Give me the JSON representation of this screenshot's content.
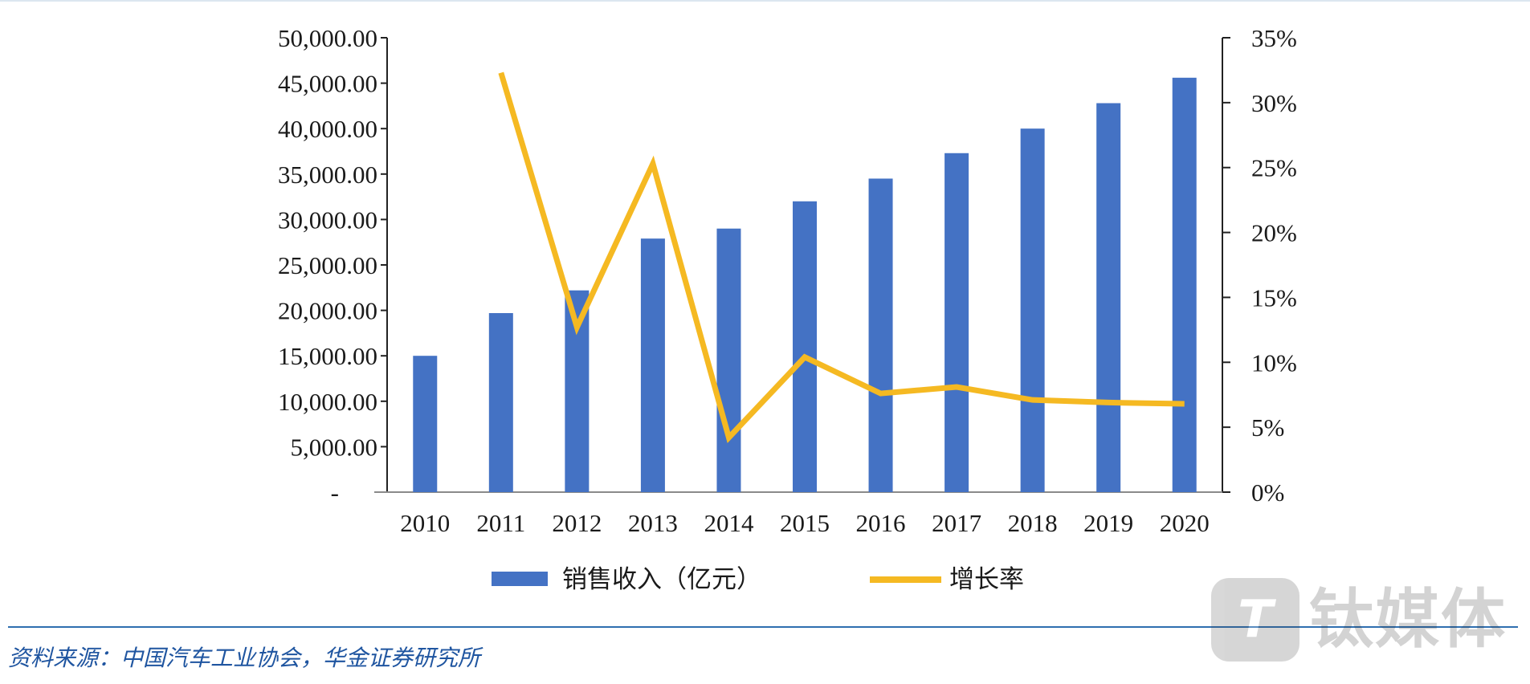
{
  "chart_data": {
    "type": "bar",
    "categories": [
      "2010",
      "2011",
      "2012",
      "2013",
      "2014",
      "2015",
      "2016",
      "2017",
      "2018",
      "2019",
      "2020"
    ],
    "series": [
      {
        "name": "销售收入（亿元）",
        "type": "bar",
        "axis": "left",
        "color": "#4472c4",
        "values": [
          15000,
          19700,
          22200,
          27900,
          29000,
          32000,
          34500,
          37300,
          40000,
          42800,
          45600
        ]
      },
      {
        "name": "增长率",
        "type": "line",
        "axis": "right",
        "color": "#f5b922",
        "values": [
          null,
          32.3,
          12.7,
          25.3,
          4.2,
          10.4,
          7.6,
          8.1,
          7.1,
          6.9,
          6.8
        ]
      }
    ],
    "y_left": {
      "ylim": [
        0,
        50000
      ],
      "tick_labels": [
        "-",
        "5,000.00",
        "10,000.00",
        "15,000.00",
        "20,000.00",
        "25,000.00",
        "30,000.00",
        "35,000.00",
        "40,000.00",
        "45,000.00",
        "50,000.00"
      ]
    },
    "y_right": {
      "ylim": [
        0,
        35
      ],
      "tick_labels": [
        "0%",
        "5%",
        "10%",
        "15%",
        "20%",
        "25%",
        "30%",
        "35%"
      ]
    },
    "legend_position": "bottom",
    "grid": false
  },
  "source_note": "资料来源：中国汽车工业协会，华金证券研究所",
  "watermark": {
    "logo_glyph": "T",
    "text": "钛媒体"
  }
}
